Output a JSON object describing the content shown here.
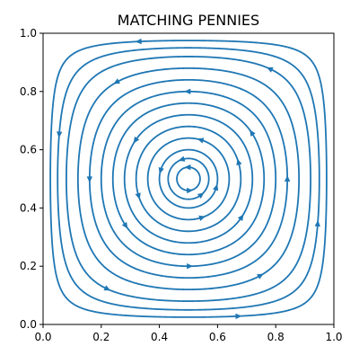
{
  "chart_data": {
    "type": "streamplot",
    "title": "MATCHING PENNIES",
    "xlabel": "",
    "ylabel": "",
    "xlim": [
      0.0,
      1.0
    ],
    "ylim": [
      0.0,
      1.0
    ],
    "xticks": [
      "0.0",
      "0.2",
      "0.4",
      "0.6",
      "0.8",
      "1.0"
    ],
    "yticks": [
      "0.0",
      "0.2",
      "0.4",
      "0.6",
      "0.8",
      "1.0"
    ],
    "grid": false,
    "legend": null,
    "line_color": "#1f77b4",
    "field": {
      "equilibrium": [
        0.5,
        0.5
      ],
      "rotation": "counterclockwise",
      "dx_dt": "x*(1-x)*(1-2y)",
      "dy_dt": "y*(1-y)*(2x-1)"
    },
    "orbits": [
      {
        "start": [
          0.5,
          0.46
        ],
        "arrows": [
          0.0,
          0.5
        ]
      },
      {
        "start": [
          0.5,
          0.43
        ],
        "arrows": [
          0.1,
          0.55
        ]
      },
      {
        "start": [
          0.5,
          0.4
        ],
        "arrows": [
          0.2,
          0.7
        ]
      },
      {
        "start": [
          0.5,
          0.36
        ],
        "arrows": [
          0.05,
          0.45
        ]
      },
      {
        "start": [
          0.5,
          0.32
        ],
        "arrows": [
          0.3,
          0.8
        ]
      },
      {
        "start": [
          0.5,
          0.28
        ],
        "arrows": [
          0.15,
          0.65
        ]
      },
      {
        "start": [
          0.5,
          0.24
        ],
        "arrows": [
          0.35,
          0.85
        ]
      },
      {
        "start": [
          0.5,
          0.2
        ],
        "arrows": [
          0.0,
          0.5
        ]
      },
      {
        "start": [
          0.5,
          0.16
        ],
        "arrows": [
          0.25,
          0.75
        ]
      },
      {
        "start": [
          0.5,
          0.12
        ],
        "arrows": [
          0.1,
          0.6
        ]
      },
      {
        "start": [
          0.5,
          0.08
        ],
        "arrows": [
          0.4,
          0.9
        ]
      },
      {
        "start": [
          0.5,
          0.05
        ],
        "arrows": [
          0.2,
          0.7
        ]
      },
      {
        "start": [
          0.5,
          0.025
        ],
        "arrows": [
          0.05,
          0.55
        ]
      }
    ]
  }
}
